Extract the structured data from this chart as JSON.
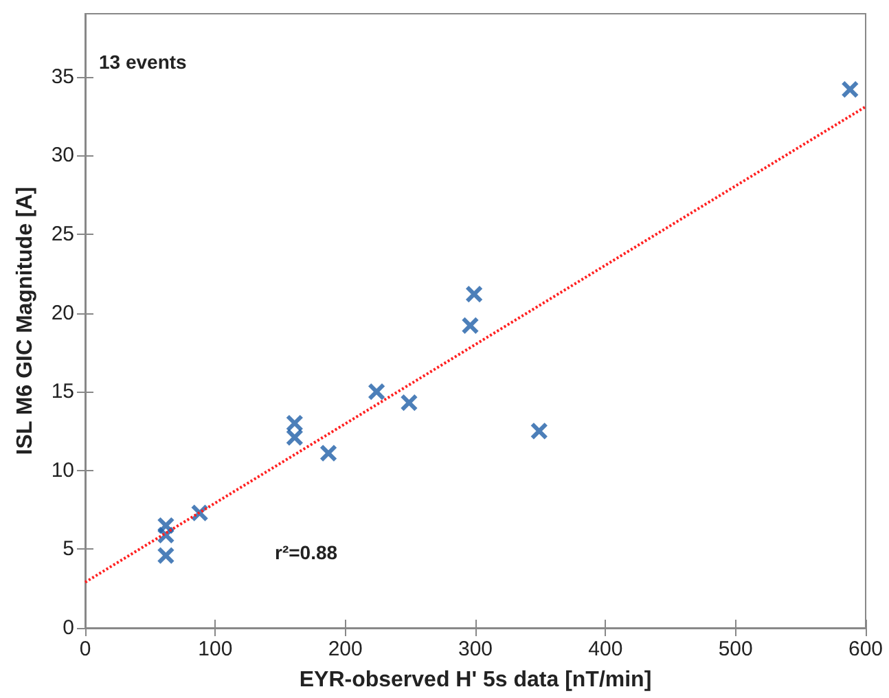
{
  "chart_data": {
    "type": "scatter",
    "xlabel": "EYR-observed H' 5s data [nT/min]",
    "ylabel": "ISL M6 GIC Magnitude [A]",
    "annotations": [
      "13 events",
      "r²=0.88"
    ],
    "series": [
      {
        "color": "#1f5fa8",
        "marker": "cross",
        "x": [
          62,
          62,
          62,
          88,
          161,
          161,
          187,
          224,
          249,
          349,
          296,
          299,
          588
        ],
        "values": [
          6.5,
          5.9,
          4.6,
          7.3,
          13.0,
          12.1,
          11.1,
          15.0,
          14.3,
          12.5,
          19.2,
          21.2,
          34.2
        ]
      },
      {
        "type": "line",
        "color": "#ff2020",
        "line_style": "dotted",
        "marker": "none",
        "x": [
          0,
          600
        ],
        "values": [
          2.9,
          33.1
        ]
      }
    ],
    "xlim": [
      0,
      600
    ],
    "xticks": [
      0,
      100,
      200,
      300,
      400,
      500,
      600
    ],
    "ylim": [
      0,
      39
    ],
    "yticks": [
      0,
      5,
      10,
      15,
      20,
      25,
      30,
      35
    ],
    "grid": false
  }
}
